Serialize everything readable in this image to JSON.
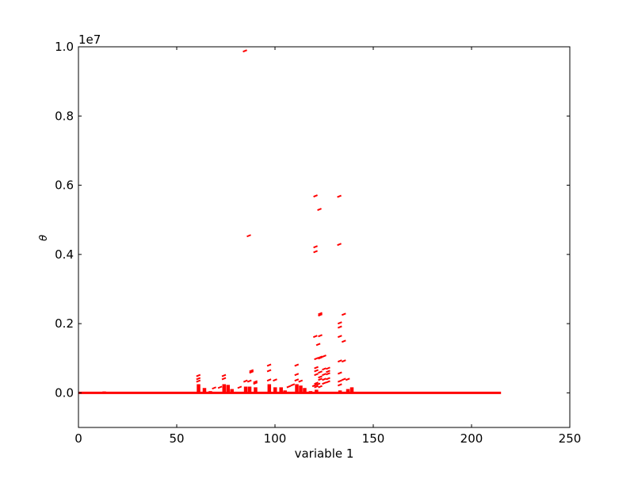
{
  "chart_data": {
    "type": "scatter",
    "title": "",
    "xlabel": "variable 1",
    "ylabel": "θ",
    "y_offset_label": "1e7",
    "xlim": [
      0,
      250
    ],
    "ylim": [
      -1000000,
      10000000
    ],
    "x_ticks": [
      0,
      50,
      100,
      150,
      200,
      250
    ],
    "x_tick_labels": [
      "0",
      "50",
      "100",
      "150",
      "200",
      "250"
    ],
    "y_ticks": [
      0,
      2000000,
      4000000,
      6000000,
      8000000,
      10000000
    ],
    "y_tick_labels": [
      "0.0",
      "0.2",
      "0.4",
      "0.6",
      "0.8",
      "1.0"
    ],
    "grid": false,
    "color": "#ff0000",
    "baseline": {
      "x_range": [
        0,
        215
      ],
      "y": 0
    },
    "bars": [
      [
        13,
        40000
      ],
      [
        16,
        20000
      ],
      [
        61,
        250000
      ],
      [
        64,
        140000
      ],
      [
        67,
        50000
      ],
      [
        74,
        250000
      ],
      [
        76,
        230000
      ],
      [
        78,
        110000
      ],
      [
        85,
        180000
      ],
      [
        87,
        180000
      ],
      [
        90,
        160000
      ],
      [
        97,
        250000
      ],
      [
        100,
        160000
      ],
      [
        103,
        160000
      ],
      [
        105,
        70000
      ],
      [
        111,
        250000
      ],
      [
        113,
        210000
      ],
      [
        115,
        140000
      ],
      [
        118,
        50000
      ],
      [
        121,
        90000
      ],
      [
        133,
        70000
      ],
      [
        137,
        110000
      ],
      [
        139,
        160000
      ],
      [
        182,
        15000
      ],
      [
        185,
        15000
      ],
      [
        193,
        15000
      ],
      [
        195,
        15000
      ]
    ],
    "dashes": [
      [
        84.7,
        9880000
      ],
      [
        120.6,
        5690000
      ],
      [
        132.7,
        5680000
      ],
      [
        122.6,
        5300000
      ],
      [
        86.7,
        4540000
      ],
      [
        120.6,
        4220000
      ],
      [
        132.7,
        4290000
      ],
      [
        120.6,
        4080000
      ],
      [
        123,
        2290000
      ],
      [
        123,
        2250000
      ],
      [
        135,
        2270000
      ],
      [
        133,
        2020000
      ],
      [
        133,
        1900000
      ],
      [
        120.5,
        1630000
      ],
      [
        123,
        1650000
      ],
      [
        122,
        1400000
      ],
      [
        135,
        1490000
      ],
      [
        133,
        1630000
      ],
      [
        61,
        500000
      ],
      [
        61,
        410000
      ],
      [
        61,
        340000
      ],
      [
        69,
        140000
      ],
      [
        72,
        160000
      ],
      [
        74,
        500000
      ],
      [
        74,
        410000
      ],
      [
        82,
        160000
      ],
      [
        85,
        340000
      ],
      [
        87,
        340000
      ],
      [
        88,
        640000
      ],
      [
        88,
        600000
      ],
      [
        90,
        320000
      ],
      [
        90,
        280000
      ],
      [
        97,
        800000
      ],
      [
        97,
        640000
      ],
      [
        97,
        370000
      ],
      [
        100,
        370000
      ],
      [
        107,
        180000
      ],
      [
        109,
        230000
      ],
      [
        111,
        800000
      ],
      [
        111,
        530000
      ],
      [
        111,
        370000
      ],
      [
        113,
        340000
      ],
      [
        120,
        210000
      ],
      [
        122,
        250000
      ],
      [
        121,
        990000
      ],
      [
        121,
        730000
      ],
      [
        121,
        640000
      ],
      [
        121,
        530000
      ],
      [
        121,
        280000
      ],
      [
        121,
        180000
      ],
      [
        123,
        1010000
      ],
      [
        123,
        1030000
      ],
      [
        123,
        600000
      ],
      [
        123,
        460000
      ],
      [
        123,
        390000
      ],
      [
        123,
        180000
      ],
      [
        125,
        1060000
      ],
      [
        125,
        690000
      ],
      [
        125,
        530000
      ],
      [
        125,
        390000
      ],
      [
        125,
        280000
      ],
      [
        127,
        710000
      ],
      [
        127,
        620000
      ],
      [
        127,
        550000
      ],
      [
        127,
        410000
      ],
      [
        127,
        320000
      ],
      [
        133,
        920000
      ],
      [
        133,
        570000
      ],
      [
        133,
        340000
      ],
      [
        133,
        230000
      ],
      [
        135,
        920000
      ],
      [
        135,
        390000
      ],
      [
        137,
        390000
      ]
    ]
  }
}
